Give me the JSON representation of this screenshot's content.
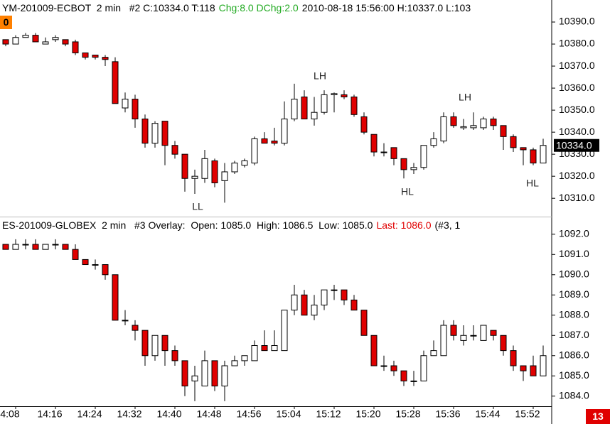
{
  "chart_data": [
    {
      "type": "candlestick",
      "header": [
        {
          "text": "YM-201009-ECBOT  2 min   #2 C:10334.0 T:118",
          "color": "#000000"
        },
        {
          "text": "Chg:8.0 DChg:2.0",
          "color": "#22aa22"
        },
        {
          "text": "2010-08-18 15:56:00 H:10337.0 L:103",
          "color": "#000000"
        }
      ],
      "badge": "0",
      "annotations": [
        "LH",
        "LL",
        "LH",
        "HL",
        "HL"
      ],
      "last_label": "10334.0",
      "up_color": "#ffffff",
      "down_color": "#e00000",
      "open": [
        10382,
        10380,
        10383,
        10384,
        10380,
        10382,
        10382,
        10381,
        10376,
        10375,
        10374,
        10372,
        10351,
        10355,
        10346,
        10335,
        10345,
        10334,
        10330,
        10319,
        10319,
        10327,
        10318,
        10322,
        10325,
        10326,
        10337,
        10336,
        10335,
        10346,
        10356,
        10346,
        10349,
        10357,
        10357,
        10356,
        10347,
        10339,
        10331,
        10333,
        10328,
        10323,
        10324,
        10334,
        10336,
        10347,
        10342,
        10342,
        10342,
        10346,
        10343,
        10338,
        10333,
        10332,
        10326
      ],
      "high": [
        10382,
        10384,
        10385,
        10385,
        10383,
        10384,
        10382,
        10382,
        10376,
        10375,
        10375,
        10374,
        10358,
        10357,
        10348,
        10345,
        10345,
        10336,
        10330,
        10323,
        10332,
        10328,
        10326,
        10327,
        10328,
        10338,
        10340,
        10342,
        10354,
        10362,
        10359,
        10356,
        10359,
        10358,
        10359,
        10357,
        10349,
        10339,
        10335,
        10333,
        10328,
        10326,
        10334,
        10340,
        10349,
        10349,
        10346,
        10349,
        10347,
        10347,
        10343,
        10339,
        10333,
        10333,
        10337
      ],
      "low": [
        10379,
        10380,
        10383,
        10381,
        10380,
        10381,
        10379,
        10375,
        10373,
        10373,
        10370,
        10353,
        10349,
        10342,
        10333,
        10333,
        10325,
        10328,
        10313,
        10312,
        10317,
        10315,
        10308,
        10321,
        10324,
        10325,
        10335,
        10334,
        10334,
        10345,
        10346,
        10343,
        10348,
        10349,
        10355,
        10347,
        10339,
        10329,
        10329,
        10325,
        10319,
        10321,
        10323,
        10333,
        10335,
        10342,
        10341,
        10341,
        10341,
        10341,
        10332,
        10331,
        10325,
        10325,
        10326
      ],
      "close": [
        10380,
        10383,
        10384,
        10381,
        10381,
        10383,
        10380,
        10376,
        10374,
        10374,
        10373,
        10353,
        10355,
        10346,
        10335,
        10344,
        10334,
        10330,
        10319,
        10320,
        10328,
        10317,
        10322,
        10326,
        10327,
        10337,
        10335,
        10335,
        10346,
        10355,
        10346,
        10349,
        10357,
        10357.5,
        10356,
        10348,
        10340,
        10331,
        10331,
        10328,
        10323,
        10324,
        10334,
        10337,
        10347,
        10343,
        10342.5,
        10343,
        10346,
        10343,
        10338,
        10333,
        10332,
        10326,
        10334
      ],
      "ylim": [
        10302,
        10400
      ],
      "yticks": [
        {
          "value": 10390,
          "label": "10390.0"
        },
        {
          "value": 10380,
          "label": "10380.0"
        },
        {
          "value": 10370,
          "label": "10370.0"
        },
        {
          "value": 10360,
          "label": "10360.0"
        },
        {
          "value": 10350,
          "label": "10350.0"
        },
        {
          "value": 10340,
          "label": "10340.0"
        },
        {
          "value": 10330,
          "label": "10330.0"
        },
        {
          "value": 10320,
          "label": "10320.0"
        },
        {
          "value": 10310,
          "label": "10310.0"
        }
      ]
    },
    {
      "type": "candlestick",
      "header": [
        {
          "text": "ES-201009-GLOBEX  2 min   #3 Overlay:  Open: 1085.0  High: 1086.5  Low: 1085.0",
          "color": "#000000"
        },
        {
          "text": "Last: 1086.0",
          "color": "#e00000"
        },
        {
          "text": "(#3, 1",
          "color": "#000000"
        }
      ],
      "badge": "13",
      "up_color": "#ffffff",
      "down_color": "#e00000",
      "categories": [
        null,
        "4:08",
        null,
        null,
        null,
        "14:16",
        null,
        null,
        null,
        "14:24",
        null,
        null,
        null,
        "14:32",
        null,
        null,
        null,
        "14:40",
        null,
        null,
        null,
        "14:48",
        null,
        null,
        null,
        "14:56",
        null,
        null,
        null,
        "15:04",
        null,
        null,
        null,
        "15:12",
        null,
        null,
        null,
        "15:20",
        null,
        null,
        null,
        "15:28",
        null,
        null,
        null,
        "15:36",
        null,
        null,
        null,
        "15:44",
        null,
        null,
        null,
        "15:52",
        null
      ],
      "open": [
        1091.5,
        1091.25,
        1091.5,
        1091.5,
        1091.25,
        1091.5,
        1091.5,
        1091.25,
        1090.75,
        1090.5,
        1090.5,
        1090,
        1087.75,
        1087.5,
        1087.25,
        1086,
        1087,
        1086.25,
        1085.75,
        1084.75,
        1084.5,
        1085.75,
        1084.5,
        1085.5,
        1085.75,
        1085.75,
        1086.5,
        1086.25,
        1086.25,
        1088.25,
        1089,
        1088,
        1088.5,
        1089.25,
        1089.25,
        1088.75,
        1088.25,
        1087,
        1085.5,
        1085.5,
        1085.25,
        1084.75,
        1084.75,
        1086,
        1086,
        1087.5,
        1086.75,
        1087,
        1086.75,
        1087.25,
        1087,
        1086.25,
        1085.5,
        1085.5,
        1085
      ],
      "high": [
        1091.5,
        1091.75,
        1091.75,
        1091.75,
        1091.5,
        1091.75,
        1091.5,
        1091.5,
        1090.75,
        1090.75,
        1090.5,
        1090,
        1088.25,
        1087.75,
        1087.25,
        1087,
        1087,
        1086.5,
        1085.75,
        1085.5,
        1086.25,
        1085.75,
        1085.75,
        1086,
        1086,
        1086.75,
        1087.25,
        1087.25,
        1088.25,
        1089.5,
        1089.25,
        1089,
        1089.25,
        1089.5,
        1089.25,
        1089,
        1088.25,
        1087,
        1086,
        1085.75,
        1085.25,
        1085.25,
        1086.25,
        1086.75,
        1087.75,
        1087.75,
        1087.5,
        1087.5,
        1087.5,
        1087.25,
        1087,
        1086.5,
        1085.5,
        1086,
        1086.5
      ],
      "low": [
        1091.25,
        1091.25,
        1091.25,
        1091.25,
        1091.25,
        1091.25,
        1091.25,
        1090.75,
        1090.5,
        1090.25,
        1089.75,
        1087.75,
        1087.5,
        1086.75,
        1085.5,
        1085.75,
        1085.5,
        1085.5,
        1084,
        1083.75,
        1084.5,
        1084.25,
        1083.75,
        1085.5,
        1085.5,
        1085.75,
        1086.25,
        1086.25,
        1086.25,
        1088,
        1088,
        1087.75,
        1088.25,
        1088.75,
        1088.5,
        1088.25,
        1087,
        1085.5,
        1085.25,
        1085,
        1084.5,
        1084.5,
        1084.75,
        1086,
        1086,
        1086.75,
        1086.5,
        1086.75,
        1086.75,
        1086.75,
        1086,
        1085.25,
        1084.75,
        1085,
        1085
      ],
      "close": [
        1091.25,
        1091.5,
        1091.5,
        1091.25,
        1091.5,
        1091.5,
        1091.25,
        1090.75,
        1090.5,
        1090.5,
        1090,
        1087.75,
        1087.75,
        1087.25,
        1086,
        1087,
        1086.25,
        1085.75,
        1084.5,
        1085,
        1085.75,
        1084.5,
        1085.5,
        1085.75,
        1086,
        1086.5,
        1086.25,
        1086.5,
        1088.25,
        1089,
        1088,
        1088.5,
        1089.25,
        1089.25,
        1088.75,
        1088.25,
        1087,
        1085.5,
        1085.5,
        1085.25,
        1084.75,
        1084.75,
        1086,
        1086.25,
        1087.5,
        1087,
        1087,
        1087,
        1087.5,
        1087,
        1086.25,
        1085.5,
        1085.25,
        1085,
        1086
      ],
      "ylim": [
        1083.5,
        1092.8
      ],
      "yticks": [
        {
          "value": 1092,
          "label": "1092.0"
        },
        {
          "value": 1091,
          "label": "1091.0"
        },
        {
          "value": 1090,
          "label": "1090.0"
        },
        {
          "value": 1089,
          "label": "1089.0"
        },
        {
          "value": 1088,
          "label": "1088.0"
        },
        {
          "value": 1087,
          "label": "1087.0"
        },
        {
          "value": 1086,
          "label": "1086.0"
        },
        {
          "value": 1085,
          "label": "1085.0"
        },
        {
          "value": 1084,
          "label": "1084.0"
        }
      ]
    }
  ]
}
